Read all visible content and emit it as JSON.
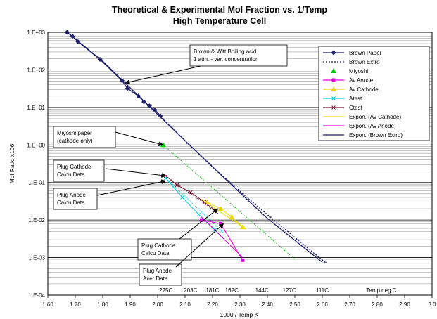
{
  "chart_data": {
    "type": "scatter",
    "title": "Theoretical & Experimental  Mol Fraction vs. 1/Temp",
    "subtitle": "High Temperature Cell",
    "xlabel": "1000 / Temp K",
    "ylabel": "Mol Ratio x106",
    "xlim": [
      1.6,
      3.0
    ],
    "ylim": [
      0.0001,
      1000
    ],
    "y_scale": "log",
    "x_ticks": [
      "1.60",
      "1.70",
      "1.80",
      "1.90",
      "2.00",
      "2.10",
      "2.20",
      "2.30",
      "2.40",
      "2.50",
      "2.60",
      "2.70",
      "2.80",
      "2.90",
      "3.0"
    ],
    "y_ticks": [
      "1.E-04",
      "1.E-03",
      "1.E-02",
      "1.E-01",
      "1.E+00",
      "1.E+01",
      "1.E+02",
      "1.E+03"
    ],
    "grid": true,
    "legend_position": "top-right",
    "temp_labels": [
      {
        "x": 2.03,
        "text": "225C"
      },
      {
        "x": 2.12,
        "text": "203C"
      },
      {
        "x": 2.2,
        "text": "181C"
      },
      {
        "x": 2.27,
        "text": "162C"
      },
      {
        "x": 2.38,
        "text": "144C"
      },
      {
        "x": 2.48,
        "text": "127C"
      },
      {
        "x": 2.6,
        "text": "111C"
      },
      {
        "x": 2.76,
        "text": "Temp deg C"
      }
    ],
    "series": [
      {
        "name": "Brown Paper",
        "color": "#1f1f6b",
        "marker": "diamond",
        "line": "solid",
        "x": [
          1.67,
          1.69,
          1.71,
          1.79,
          1.87,
          1.89,
          1.93,
          1.95,
          1.97,
          1.99,
          2.01
        ],
        "y": [
          1000,
          780,
          560,
          190,
          52,
          32,
          20,
          14,
          11,
          8.5,
          6
        ]
      },
      {
        "name": "Brown Extro",
        "color": "#1f1f6b",
        "marker": "dash",
        "line": "dotted",
        "x": [
          2.01,
          2.11,
          2.21,
          2.31,
          2.41,
          2.51,
          2.61
        ],
        "y": [
          6,
          1.1,
          0.23,
          0.05,
          0.012,
          0.003,
          0.00075
        ]
      },
      {
        "name": "Miyoshi",
        "color": "#00c800",
        "marker": "triangle",
        "line": "none",
        "x": [
          2.02
        ],
        "y": [
          1.0
        ]
      },
      {
        "name": "Av Anode",
        "color": "#e000e0",
        "marker": "square",
        "line": "solid",
        "x": [
          2.16,
          2.23,
          2.31
        ],
        "y": [
          0.01,
          0.008,
          0.00085
        ]
      },
      {
        "name": "Av Cathode",
        "color": "#e8d800",
        "marker": "triangle",
        "line": "solid",
        "x": [
          2.18,
          2.23,
          2.27,
          2.31
        ],
        "y": [
          0.03,
          0.02,
          0.012,
          0.0065
        ]
      },
      {
        "name": "Atest",
        "color": "#00d0e0",
        "marker": "x",
        "line": "solid",
        "x": [
          2.03,
          2.09,
          2.15,
          2.21
        ],
        "y": [
          0.13,
          0.04,
          0.014,
          0.0055
        ]
      },
      {
        "name": "Ctest",
        "color": "#7a1a3a",
        "marker": "x",
        "line": "solid",
        "x": [
          2.03,
          2.07,
          2.12,
          2.17,
          2.21
        ],
        "y": [
          0.15,
          0.085,
          0.055,
          0.03,
          0.018
        ]
      },
      {
        "name": "Expon. (Av Cathode)",
        "color": "#e8e000",
        "marker": "none",
        "line": "solid",
        "x": [
          2.16,
          2.32
        ],
        "y": [
          0.036,
          0.0058
        ]
      },
      {
        "name": "Expon. (Av Anode)",
        "color": "#e000e0",
        "marker": "none",
        "line": "solid",
        "x": [
          2.16,
          2.31
        ],
        "y": [
          0.012,
          0.001
        ]
      },
      {
        "name": "Expon. (Brown Extro)",
        "color": "#1f1f6b",
        "marker": "none",
        "line": "solid",
        "x": [
          1.67,
          1.8,
          2.0,
          2.2,
          2.4,
          2.6
        ],
        "y": [
          1000,
          170,
          6.5,
          0.26,
          0.011,
          0.00075
        ]
      }
    ],
    "extra_lines": [
      {
        "color": "#00b400",
        "x": [
          2.02,
          2.5
        ],
        "y": [
          1.0,
          0.0009
        ]
      },
      {
        "color": "#00d0e0",
        "x": [
          2.03,
          2.24
        ],
        "y": [
          0.13,
          0.0045
        ]
      },
      {
        "color": "#7a1a3a",
        "x": [
          2.03,
          2.22
        ],
        "y": [
          0.15,
          0.015
        ]
      }
    ],
    "annotations": [
      {
        "lines": [
          "Brown & Witt Boiling acid",
          "1 atm. - var. concentration"
        ],
        "target": {
          "x": 1.88,
          "y": 45
        }
      },
      {
        "lines": [
          "Miyoshi paper",
          "(cathode only)"
        ],
        "target": {
          "x": 2.02,
          "y": 1.0
        }
      },
      {
        "lines": [
          "Plug Cathode",
          "Calcu Data"
        ],
        "target": {
          "x": 2.03,
          "y": 0.15
        }
      },
      {
        "lines": [
          "Plug Anode",
          "Calcu Data"
        ],
        "target": {
          "x": 2.03,
          "y": 0.11
        }
      },
      {
        "lines": [
          "Plug Cathode",
          "Calcu Data"
        ],
        "target": {
          "x": 2.22,
          "y": 0.02
        }
      },
      {
        "lines": [
          "Plug Anode",
          "Aver Data"
        ],
        "target": {
          "x": 2.24,
          "y": 0.008
        }
      }
    ]
  }
}
